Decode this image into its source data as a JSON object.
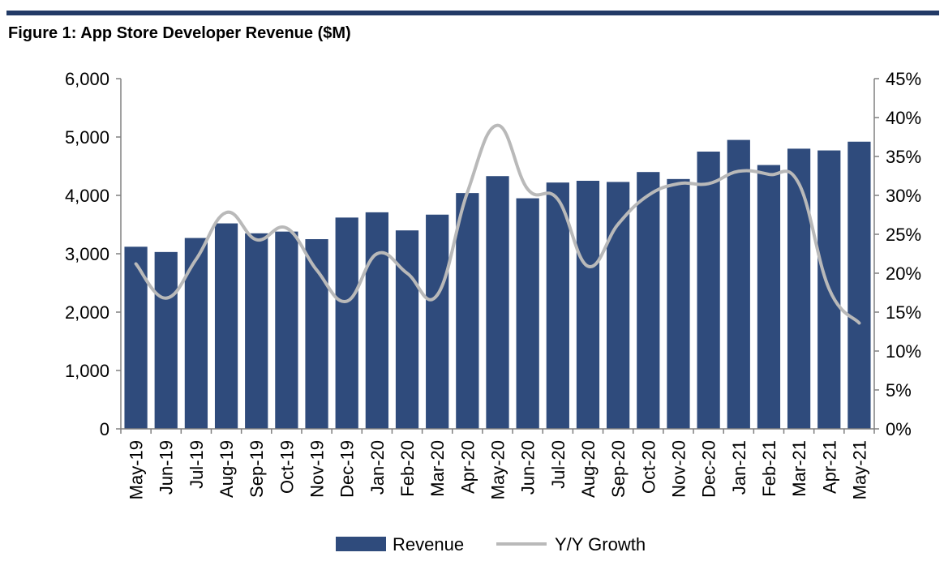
{
  "title": "Figure 1: App Store Developer Revenue ($M)",
  "chart_data": {
    "type": "bar",
    "title": "Figure 1: App Store Developer Revenue ($M)",
    "categories": [
      "May-19",
      "Jun-19",
      "Jul-19",
      "Aug-19",
      "Sep-19",
      "Oct-19",
      "Nov-19",
      "Dec-19",
      "Jan-20",
      "Feb-20",
      "Mar-20",
      "Apr-20",
      "May-20",
      "Jun-20",
      "Jul-20",
      "Aug-20",
      "Sep-20",
      "Oct-20",
      "Nov-20",
      "Dec-20",
      "Jan-21",
      "Feb-21",
      "Mar-21",
      "Apr-21",
      "May-21"
    ],
    "series": [
      {
        "name": "Revenue",
        "type": "bar",
        "axis": "left",
        "color": "#2f4b7c",
        "values": [
          3120,
          3030,
          3270,
          3520,
          3350,
          3380,
          3250,
          3620,
          3710,
          3400,
          3670,
          4040,
          4330,
          3950,
          4220,
          4250,
          4230,
          4400,
          4280,
          4750,
          4950,
          4520,
          4800,
          4770,
          4920
        ]
      },
      {
        "name": "Y/Y Growth",
        "type": "line",
        "axis": "right",
        "color": "#b9b9b9",
        "values": [
          21.2,
          16.8,
          21.8,
          27.8,
          24.3,
          25.8,
          20.4,
          16.4,
          22.5,
          20.0,
          17.2,
          30.4,
          39.0,
          30.8,
          29.5,
          20.9,
          26.3,
          30.0,
          31.5,
          31.5,
          33.1,
          32.7,
          31.5,
          18.0,
          13.6
        ]
      }
    ],
    "y_left": {
      "ylim": [
        0,
        6000
      ],
      "ticks": [
        0,
        1000,
        2000,
        3000,
        4000,
        5000,
        6000
      ],
      "tick_labels": [
        "0",
        "1,000",
        "2,000",
        "3,000",
        "4,000",
        "5,000",
        "6,000"
      ]
    },
    "y_right": {
      "ylim": [
        0,
        45
      ],
      "ticks": [
        0,
        5,
        10,
        15,
        20,
        25,
        30,
        35,
        40,
        45
      ],
      "tick_labels": [
        "0%",
        "5%",
        "10%",
        "15%",
        "20%",
        "25%",
        "30%",
        "35%",
        "40%",
        "45%"
      ]
    },
    "grid": false,
    "legend": {
      "position": "bottom-center",
      "entries": [
        "Revenue",
        "Y/Y Growth"
      ]
    }
  }
}
